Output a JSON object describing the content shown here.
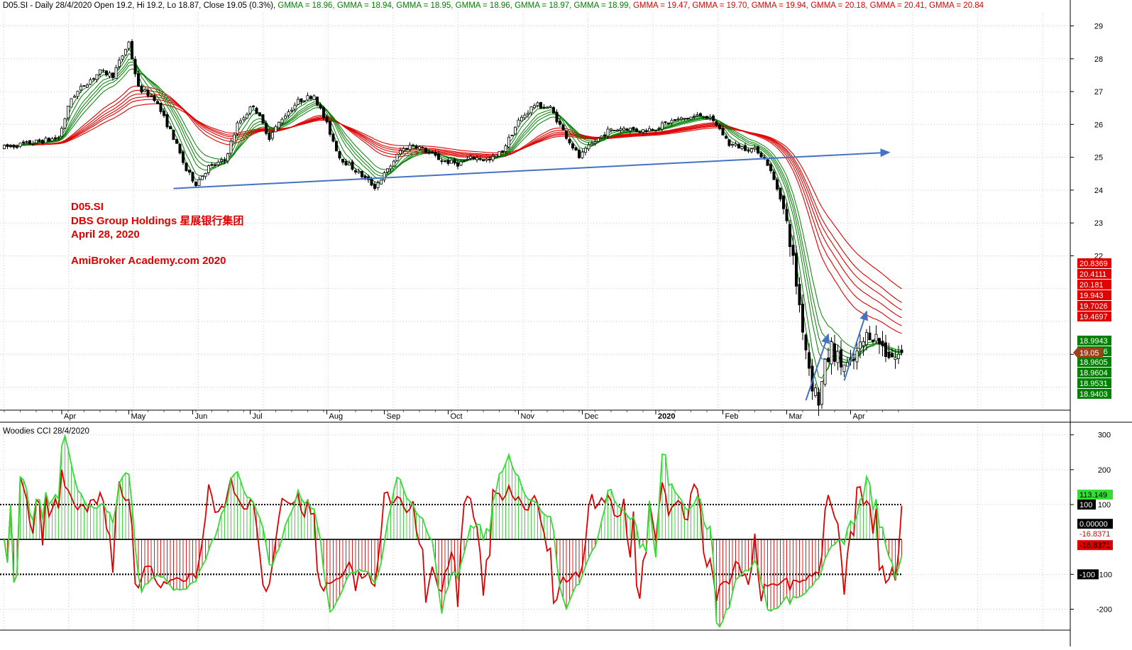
{
  "header": {
    "title": "D05.SI - Daily 28/4/2020 Open 19.2, Hi 19.2, Lo 18.87, Close 19.05 (0.3%)",
    "gmma": [
      {
        "label": "GMMA = 18.96",
        "color": "#008000"
      },
      {
        "label": "GMMA = 18.94",
        "color": "#008000"
      },
      {
        "label": "GMMA = 18.95",
        "color": "#008000"
      },
      {
        "label": "GMMA = 18.96",
        "color": "#008000"
      },
      {
        "label": "GMMA = 18.97",
        "color": "#008000"
      },
      {
        "label": "GMMA = 18.99",
        "color": "#008000"
      },
      {
        "label": "GMMA = 19.47",
        "color": "#e00000"
      },
      {
        "label": "GMMA = 19.70",
        "color": "#e00000"
      },
      {
        "label": "GMMA = 19.94",
        "color": "#e00000"
      },
      {
        "label": "GMMA = 20.18",
        "color": "#e00000"
      },
      {
        "label": "GMMA = 20.41",
        "color": "#e00000"
      },
      {
        "label": "GMMA = 20.84",
        "color": "#e00000"
      }
    ]
  },
  "annotation": {
    "lines": [
      "D05.SI",
      "DBS Group Holdings 星展银行集团",
      "April 28, 2020"
    ],
    "site": "AmiBroker Academy.com  2020",
    "color": "#e00000"
  },
  "chart_data": [
    {
      "type": "candlestick",
      "ylim": [
        17.3,
        29.4
      ],
      "y_ticks": [
        "29",
        "28",
        "27",
        "26",
        "25",
        "24",
        "23",
        "22",
        "19"
      ],
      "y_tick_values": [
        29,
        28,
        27,
        26,
        25,
        24,
        23,
        22,
        19
      ],
      "months": [
        "Apr",
        "May",
        "Jun",
        "Jul",
        "Aug",
        "Sep",
        "Oct",
        "Nov",
        "Dec",
        "2020",
        "Feb",
        "Mar",
        "Apr"
      ],
      "month_index": [
        18,
        39,
        59,
        77,
        101,
        119,
        139,
        161,
        181,
        204,
        225,
        245,
        265
      ],
      "anchors": [
        [
          0,
          25.3
        ],
        [
          6,
          25.4
        ],
        [
          12,
          25.5
        ],
        [
          17,
          25.6
        ],
        [
          21,
          26.8
        ],
        [
          25,
          27.2
        ],
        [
          30,
          27.6
        ],
        [
          34,
          27.5
        ],
        [
          39,
          28.5
        ],
        [
          42,
          27.1
        ],
        [
          47,
          26.8
        ],
        [
          53,
          25.6
        ],
        [
          57,
          24.6
        ],
        [
          60,
          24.2
        ],
        [
          64,
          24.7
        ],
        [
          69,
          24.9
        ],
        [
          73,
          26.0
        ],
        [
          78,
          26.6
        ],
        [
          83,
          25.6
        ],
        [
          87,
          26.2
        ],
        [
          92,
          26.7
        ],
        [
          97,
          26.9
        ],
        [
          101,
          26.0
        ],
        [
          105,
          25.0
        ],
        [
          110,
          24.6
        ],
        [
          116,
          24.1
        ],
        [
          120,
          24.6
        ],
        [
          124,
          25.2
        ],
        [
          128,
          25.4
        ],
        [
          132,
          25.2
        ],
        [
          137,
          24.9
        ],
        [
          142,
          24.8
        ],
        [
          147,
          25.0
        ],
        [
          152,
          24.9
        ],
        [
          156,
          25.2
        ],
        [
          161,
          26.1
        ],
        [
          166,
          26.6
        ],
        [
          171,
          26.5
        ],
        [
          175,
          25.8
        ],
        [
          180,
          25.0
        ],
        [
          184,
          25.4
        ],
        [
          189,
          25.8
        ],
        [
          194,
          25.9
        ],
        [
          199,
          25.8
        ],
        [
          204,
          25.9
        ],
        [
          209,
          26.1
        ],
        [
          214,
          26.2
        ],
        [
          219,
          26.3
        ],
        [
          223,
          26.0
        ],
        [
          227,
          25.4
        ],
        [
          231,
          25.3
        ],
        [
          236,
          25.2
        ],
        [
          239,
          24.8
        ],
        [
          243,
          23.8
        ],
        [
          246,
          22.5
        ],
        [
          249,
          20.5
        ],
        [
          251,
          19.2
        ],
        [
          253,
          18.1
        ],
        [
          255,
          17.6
        ],
        [
          257,
          18.6
        ],
        [
          259,
          19.2
        ],
        [
          262,
          18.7
        ],
        [
          265,
          18.6
        ],
        [
          268,
          19.2
        ],
        [
          271,
          19.7
        ],
        [
          273,
          19.5
        ],
        [
          276,
          19.1
        ],
        [
          279,
          18.9
        ],
        [
          281,
          19.05
        ]
      ],
      "gmma": {
        "short_periods": [
          3,
          5,
          8,
          10,
          12,
          15
        ],
        "long_periods": [
          30,
          35,
          40,
          45,
          50,
          60
        ],
        "short_color": "#008000",
        "long_color": "#e00000",
        "last_values": {
          "short": [
            "18.9943",
            "18.9686",
            "18.9605",
            "18.9604",
            "18.9531",
            "18.9403"
          ],
          "long": [
            "20.8369",
            "20.4111",
            "20.181",
            "19.943",
            "19.7026",
            "19.4697"
          ]
        }
      },
      "close_label": "19.05",
      "trendlines": [
        {
          "from": [
            53,
            24.05
          ],
          "to": [
            277,
            25.15
          ],
          "arrow": true
        },
        {
          "from": [
            251,
            17.6
          ],
          "to": [
            258,
            19.6
          ],
          "arrow": true
        },
        {
          "from": [
            263,
            18.2
          ],
          "to": [
            270,
            20.3
          ],
          "arrow": true
        }
      ]
    },
    {
      "type": "cci",
      "title": "Woodies CCI  28/4/2020",
      "ylim": [
        -260,
        330
      ],
      "y_ticks": [
        "300",
        "200",
        "100",
        "-100",
        "-200"
      ],
      "y_tick_values": [
        300,
        200,
        100,
        -100,
        -200
      ],
      "levels": [
        100,
        0,
        -100
      ],
      "level_labels": [
        "100",
        "0.00000",
        "-100"
      ],
      "value_labels": {
        "cci14": "113.149",
        "cci6": "-16.8371",
        "cci6b": "-16.8371"
      },
      "cci14_color": "#33dd33",
      "cci6_color": "#dd0000"
    }
  ]
}
